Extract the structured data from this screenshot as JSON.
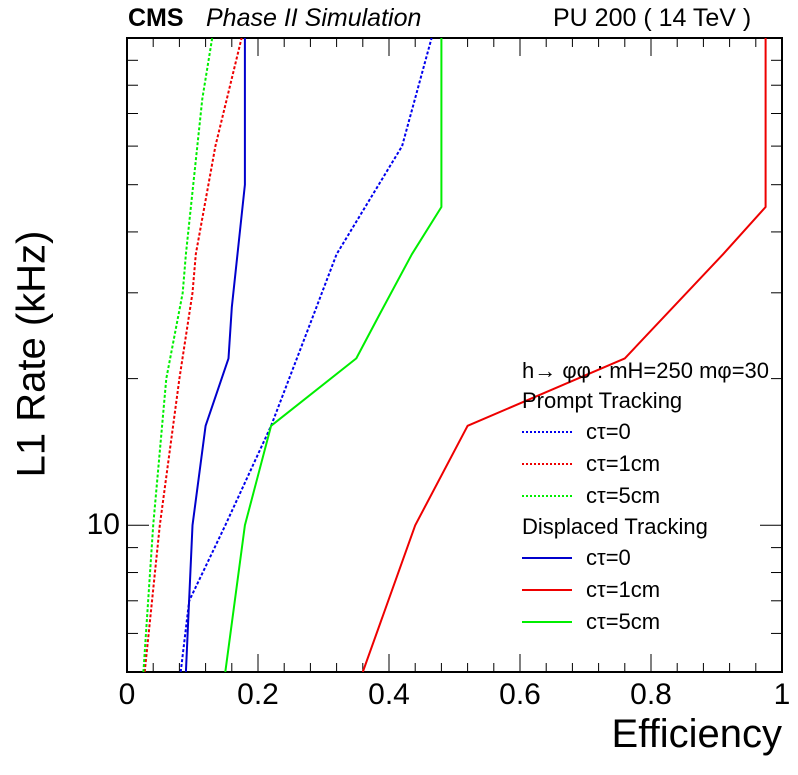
{
  "header": {
    "cms": "CMS",
    "sub": "Phase II Simulation",
    "pu": "PU 200 ( 14 TeV  )"
  },
  "chart_data": {
    "type": "line",
    "xlabel": "Efficiency",
    "ylabel": "L1 Rate (kHz)",
    "xlim": [
      0,
      1
    ],
    "ylim": [
      5,
      100
    ],
    "ylog": true,
    "xticks": [
      "0",
      "0.2",
      "0.4",
      "0.6",
      "0.8",
      "1"
    ],
    "yticks": [
      {
        "value": 10,
        "label": "10"
      }
    ],
    "legend": {
      "placement": "right",
      "title": "h→ φφ : mH=250 mφ=30",
      "groups": [
        {
          "name": "Prompt Tracking",
          "items": [
            {
              "label": "cτ=0",
              "color": "#0000ee",
              "style": "dotted"
            },
            {
              "label": "cτ=1cm",
              "color": "#ee0000",
              "style": "dotted"
            },
            {
              "label": "cτ=5cm",
              "color": "#00ee00",
              "style": "dotted"
            }
          ]
        },
        {
          "name": "Displaced Tracking",
          "items": [
            {
              "label": "cτ=0",
              "color": "#0000cc",
              "style": "solid"
            },
            {
              "label": "cτ=1cm",
              "color": "#ee0000",
              "style": "solid"
            },
            {
              "label": "cτ=5cm",
              "color": "#00ee00",
              "style": "solid"
            }
          ]
        }
      ]
    },
    "series": [
      {
        "name": "Prompt Tracking cτ=0",
        "color": "#0000ee",
        "style": "dotted",
        "x": [
          0.082,
          0.095,
          0.15,
          0.22,
          0.28,
          0.32,
          0.42,
          0.465
        ],
        "y": [
          5,
          7.0,
          10.0,
          16.0,
          26.0,
          36.0,
          60.0,
          100
        ]
      },
      {
        "name": "Prompt Tracking cτ=1cm",
        "color": "#ee0000",
        "style": "dotted",
        "x": [
          0.027,
          0.05,
          0.08,
          0.1,
          0.105,
          0.135,
          0.175
        ],
        "y": [
          5,
          10.0,
          20.0,
          30.0,
          36.0,
          60.0,
          100
        ]
      },
      {
        "name": "Prompt Tracking cτ=5cm",
        "color": "#00ee00",
        "style": "dotted",
        "x": [
          0.025,
          0.04,
          0.06,
          0.085,
          0.09,
          0.115,
          0.13
        ],
        "y": [
          5,
          10.0,
          20.0,
          30.0,
          36.0,
          75.0,
          100
        ]
      },
      {
        "name": "Displaced Tracking cτ=0",
        "color": "#0000cc",
        "style": "solid",
        "x": [
          0.09,
          0.1,
          0.12,
          0.155,
          0.16,
          0.18,
          0.18
        ],
        "y": [
          5,
          10.0,
          16.0,
          22.0,
          28.0,
          50.0,
          100
        ]
      },
      {
        "name": "Displaced Tracking cτ=1cm",
        "color": "#ee0000",
        "style": "solid",
        "x": [
          0.36,
          0.44,
          0.52,
          0.76,
          0.91,
          0.975,
          0.975
        ],
        "y": [
          5,
          10.0,
          16.0,
          22.0,
          36.0,
          45.0,
          100
        ]
      },
      {
        "name": "Displaced Tracking cτ=5cm",
        "color": "#00ee00",
        "style": "solid",
        "x": [
          0.15,
          0.18,
          0.22,
          0.35,
          0.385,
          0.435,
          0.48,
          0.48
        ],
        "y": [
          5,
          10.0,
          16.0,
          22.0,
          27.0,
          36.0,
          45.0,
          100
        ]
      }
    ]
  }
}
